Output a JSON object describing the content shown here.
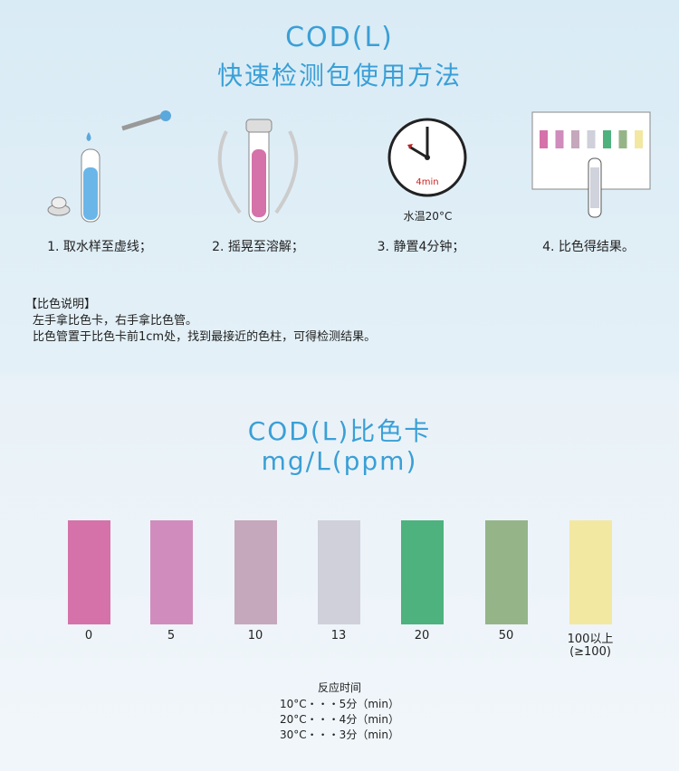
{
  "header": {
    "line1": "COD(L)",
    "line2": "快速检测包使用方法"
  },
  "steps": [
    {
      "label": "1. 取水样至虚线；",
      "icon": "test-tube-dropper-icon"
    },
    {
      "label": "2. 摇晃至溶解；",
      "icon": "shake-tube-icon"
    },
    {
      "label": "3. 静置4分钟；",
      "icon": "clock-icon",
      "clock_text": "4min",
      "caption": "水温20°C"
    },
    {
      "label": "4. 比色得结果。",
      "icon": "color-card-compare-icon"
    }
  ],
  "note": {
    "heading": "【比色说明】",
    "line1": "左手拿比色卡，右手拿比色管。",
    "line2": "比色管置于比色卡前1cm处，找到最接近的色柱，可得检测结果。"
  },
  "card": {
    "title": "COD(L)比色卡",
    "unit": "mg/L(ppm)",
    "swatches": [
      {
        "value": "0",
        "color": "#d572aa"
      },
      {
        "value": "5",
        "color": "#d08cbd"
      },
      {
        "value": "10",
        "color": "#c5a8bb"
      },
      {
        "value": "13",
        "color": "#cfd0da"
      },
      {
        "value": "20",
        "color": "#4db27e"
      },
      {
        "value": "50",
        "color": "#95b588"
      },
      {
        "value": "100以上",
        "sub": "(≥100)",
        "color": "#f2e8a2"
      }
    ]
  },
  "reaction": {
    "heading": "反应时间",
    "rows": [
      "10°C・・・5分（min）",
      "20°C・・・4分（min）",
      "30°C・・・3分（min）"
    ]
  }
}
